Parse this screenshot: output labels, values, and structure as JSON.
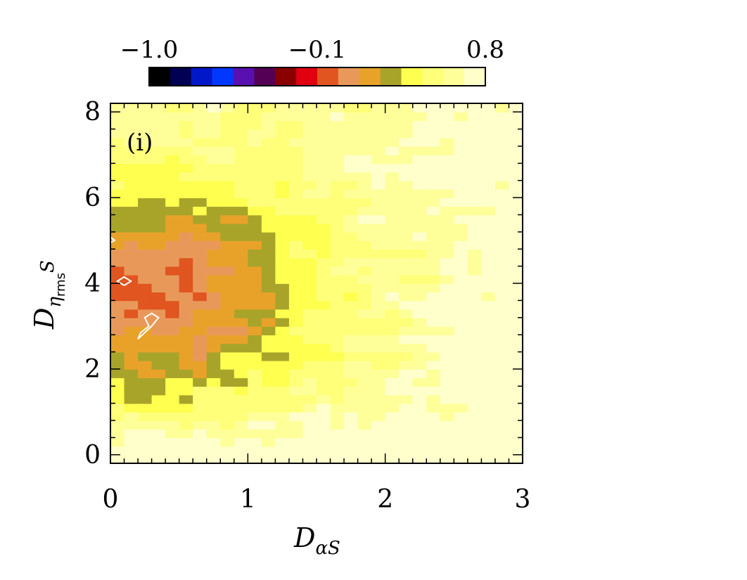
{
  "chart_data": {
    "type": "heatmap",
    "panel_label": "(i)",
    "x": {
      "label_main": "D",
      "label_sub": "αS",
      "ticks": [
        0,
        1,
        2,
        3
      ],
      "tick_labels": [
        "0",
        "1",
        "2",
        "3"
      ],
      "range": [
        0,
        3
      ]
    },
    "y": {
      "label_main": "D",
      "label_sub_greek": "η",
      "label_sub_text": "rms",
      "label_tail": "S",
      "ticks": [
        0,
        2,
        4,
        6,
        8
      ],
      "tick_labels": [
        "0",
        "2",
        "4",
        "6",
        "8"
      ],
      "range": [
        -0.2,
        8.2
      ]
    },
    "colorbar": {
      "range": [
        -1.0,
        0.8
      ],
      "tick_labels": [
        "−1.0",
        "−0.1",
        "0.8"
      ],
      "tick_values": [
        -1.0,
        -0.1,
        0.8
      ],
      "colors": [
        "#000000",
        "#020052",
        "#0018c8",
        "#0038ff",
        "#5a0fb0",
        "#540055",
        "#8a0000",
        "#e00010",
        "#e05520",
        "#e8995a",
        "#e8a22a",
        "#a8a42a",
        "#ffff50",
        "#ffff7a",
        "#ffff9a",
        "#ffffcc"
      ]
    },
    "contours": [
      {
        "level": "lowest",
        "color": "#ffffff",
        "points": [
          [
            0.1,
            3.95
          ],
          [
            0.15,
            4.05
          ],
          [
            0.1,
            4.15
          ],
          [
            0.05,
            4.05
          ],
          [
            0.1,
            3.95
          ]
        ]
      },
      {
        "level": "lowest",
        "color": "#ffffff",
        "points": [
          [
            0.2,
            2.7
          ],
          [
            0.25,
            2.85
          ],
          [
            0.3,
            3.0
          ],
          [
            0.35,
            3.2
          ],
          [
            0.3,
            3.3
          ],
          [
            0.25,
            3.2
          ],
          [
            0.28,
            3.0
          ],
          [
            0.22,
            2.85
          ],
          [
            0.2,
            2.7
          ]
        ]
      },
      {
        "level": "lowest",
        "color": "#ffffff",
        "points": [
          [
            0.0,
            4.95
          ],
          [
            0.03,
            5.0
          ],
          [
            0.0,
            5.08
          ]
        ]
      }
    ]
  }
}
